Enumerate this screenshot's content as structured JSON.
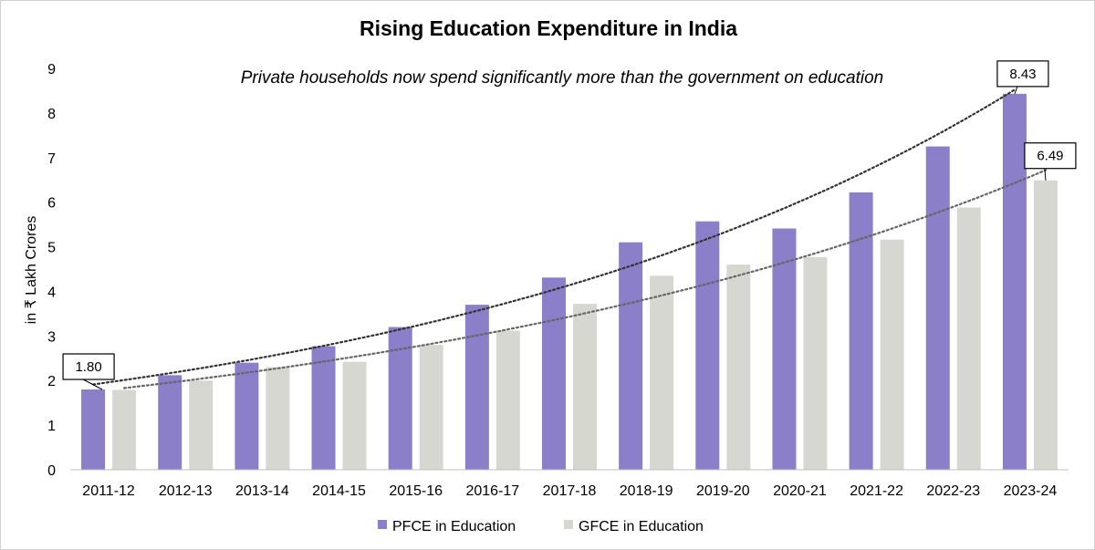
{
  "chart_data": {
    "type": "bar",
    "title": "Rising Education Expenditure in India",
    "subtitle": "Private households now spend significantly more than the government on education",
    "xlabel": "",
    "ylabel": "in ₹ Lakh Crores",
    "ylim": [
      0,
      9
    ],
    "yticks": [
      "0",
      "1",
      "2",
      "3",
      "4",
      "5",
      "6",
      "7",
      "8",
      "9"
    ],
    "categories": [
      "2011-12",
      "2012-13",
      "2013-14",
      "2014-15",
      "2015-16",
      "2016-17",
      "2017-18",
      "2018-19",
      "2019-20",
      "2020-21",
      "2021-22",
      "2022-23",
      "2023-24"
    ],
    "series": [
      {
        "name": "PFCE in Education",
        "color": "#8b7fc9",
        "values": [
          1.8,
          2.12,
          2.4,
          2.77,
          3.2,
          3.7,
          4.31,
          5.1,
          5.57,
          5.41,
          6.22,
          7.25,
          8.43
        ]
      },
      {
        "name": "GFCE in Education",
        "color": "#d7d7d2",
        "values": [
          1.79,
          2.0,
          2.3,
          2.42,
          2.8,
          3.12,
          3.72,
          4.35,
          4.6,
          4.77,
          5.16,
          5.88,
          6.49
        ]
      }
    ],
    "trendlines": [
      {
        "series": "PFCE in Education",
        "type": "exponential",
        "style": "dotted",
        "color": "#333333"
      },
      {
        "series": "GFCE in Education",
        "type": "exponential",
        "style": "dotted",
        "color": "#666666"
      }
    ],
    "annotations": [
      {
        "text": "1.80",
        "category": "2011-12",
        "series": "PFCE in Education"
      },
      {
        "text": "8.43",
        "category": "2023-24",
        "series": "PFCE in Education"
      },
      {
        "text": "6.49",
        "category": "2023-24",
        "series": "GFCE in Education"
      }
    ],
    "legend_position": "bottom",
    "grid": false
  }
}
